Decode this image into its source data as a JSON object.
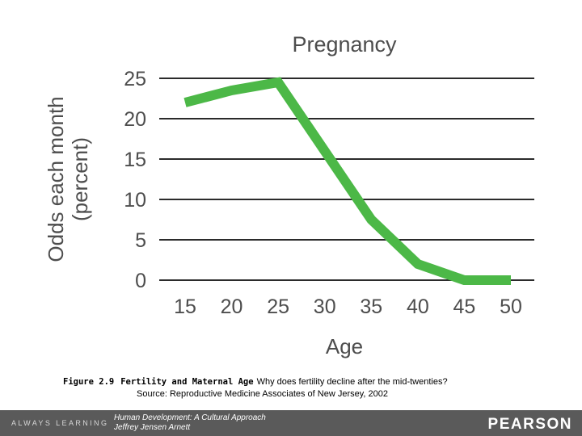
{
  "chart_data": {
    "type": "line",
    "title": "Pregnancy",
    "xlabel": "Age",
    "ylabel_line1": "Odds each month",
    "ylabel_line2": "(percent)",
    "x": [
      15,
      20,
      25,
      30,
      35,
      40,
      45,
      50
    ],
    "x_ticks": [
      "15",
      "20",
      "25",
      "30",
      "35",
      "40",
      "45",
      "50"
    ],
    "y_ticks": [
      "0",
      "5",
      "10",
      "15",
      "20",
      "25"
    ],
    "ylim": [
      0,
      25
    ],
    "grid": "horizontal",
    "series": [
      {
        "values": [
          22,
          23.5,
          24.5,
          16,
          7.5,
          2,
          0,
          0
        ],
        "color": "#4cb847"
      }
    ],
    "colors": {
      "line": "#4cb847",
      "grid": "#2b2b2b",
      "text": "#4d4d4d"
    }
  },
  "caption": {
    "figure_number": "Figure 2.9",
    "figure_title": "Fertility and Maternal Age",
    "text": "Why does fertility decline after the mid-twenties?",
    "source": "Source: Reproductive Medicine Associates of New Jersey, 2002"
  },
  "footer": {
    "tagline": "ALWAYS LEARNING",
    "book_title": "Human Development: A Cultural Approach",
    "author": "Jeffrey Jensen Arnett",
    "publisher": "PEARSON",
    "bar_color": "#5a5a5a"
  }
}
